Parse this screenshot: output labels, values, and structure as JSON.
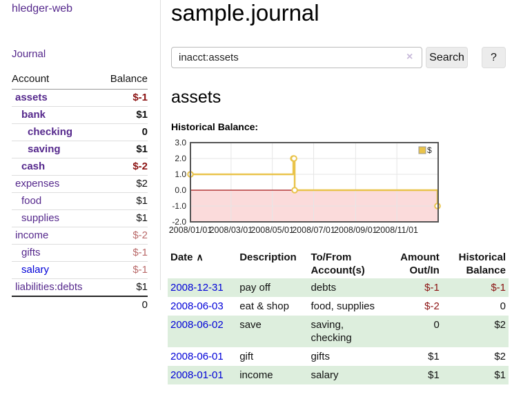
{
  "sidebar": {
    "app_title": "hledger-web",
    "nav": {
      "journal": "Journal"
    },
    "accounts_table": {
      "account_header": "Account",
      "balance_header": "Balance",
      "accounts": [
        {
          "name": "assets",
          "balance": "$-1"
        },
        {
          "name": "bank",
          "balance": "$1"
        },
        {
          "name": "checking",
          "balance": "0"
        },
        {
          "name": "saving",
          "balance": "$1"
        },
        {
          "name": "cash",
          "balance": "$-2"
        },
        {
          "name": "expenses",
          "balance": "$2"
        },
        {
          "name": "food",
          "balance": "$1"
        },
        {
          "name": "supplies",
          "balance": "$1"
        },
        {
          "name": "income",
          "balance": "$-2"
        },
        {
          "name": "gifts",
          "balance": "$-1"
        },
        {
          "name": "salary",
          "balance": "$-1"
        },
        {
          "name": "liabilities:debts",
          "balance": "$1"
        }
      ],
      "total": "0"
    }
  },
  "main": {
    "title": "sample.journal",
    "search": {
      "value": "inacct:assets",
      "clear_icon": "×",
      "search_button": "Search",
      "help_button": "?"
    },
    "account_heading": "assets",
    "section_label": "Historical Balance:"
  },
  "chart_data": {
    "type": "line",
    "title": "Historical Balance",
    "series": [
      {
        "name": "$",
        "step": true,
        "points": [
          [
            "2008-01-01",
            1
          ],
          [
            "2008-06-01",
            2
          ],
          [
            "2008-06-02",
            2
          ],
          [
            "2008-06-03",
            0
          ],
          [
            "2008-12-31",
            -1
          ]
        ]
      }
    ],
    "x_domain": [
      "2008-01-01",
      "2009-01-01"
    ],
    "ylim": [
      -2,
      3
    ],
    "y_ticks": [
      3,
      2,
      1,
      0,
      -1,
      -2
    ],
    "y_tick_labels": [
      "3.0",
      "2.0",
      "1.0",
      "0.0",
      "-1.0",
      "-2.0"
    ],
    "x_ticks": [
      "2008-01-01",
      "2008-03-01",
      "2008-05-01",
      "2008-07-01",
      "2008-09-01",
      "2008-11-01"
    ],
    "x_tick_labels": [
      "2008/01/01",
      "2008/03/01",
      "2008/05/01",
      "2008/07/01",
      "2008/09/01",
      "2008/11/01"
    ],
    "legend": {
      "label": "$",
      "position": "top-right"
    },
    "grid": true,
    "colors": {
      "line": "#e9c34a",
      "marker_fill": "#ffffff",
      "negative_fill": "#fbdbdb",
      "zero_line": "#a51414",
      "border": "#545454",
      "grid": "#e6e6e6"
    }
  },
  "register_table": {
    "sort_icon": "∧",
    "columns": [
      {
        "l1": "Date",
        "l2": ""
      },
      {
        "l1": "Description",
        "l2": ""
      },
      {
        "l1": "To/From",
        "l2": "Account(s)"
      },
      {
        "l1": "Amount",
        "l2": "Out/In"
      },
      {
        "l1": "Historical",
        "l2": "Balance"
      }
    ],
    "rows": [
      {
        "date": "2008-12-31",
        "description": "pay off",
        "accounts": "debts",
        "amount": "$-1",
        "balance": "$-1"
      },
      {
        "date": "2008-06-03",
        "description": "eat & shop",
        "accounts": "food, supplies",
        "amount": "$-2",
        "balance": "0"
      },
      {
        "date": "2008-06-02",
        "description": "save",
        "accounts": "saving, checking",
        "amount": "0",
        "balance": "$2"
      },
      {
        "date": "2008-06-01",
        "description": "gift",
        "accounts": "gifts",
        "amount": "$1",
        "balance": "$2"
      },
      {
        "date": "2008-01-01",
        "description": "income",
        "accounts": "salary",
        "amount": "$1",
        "balance": "$1"
      }
    ]
  }
}
